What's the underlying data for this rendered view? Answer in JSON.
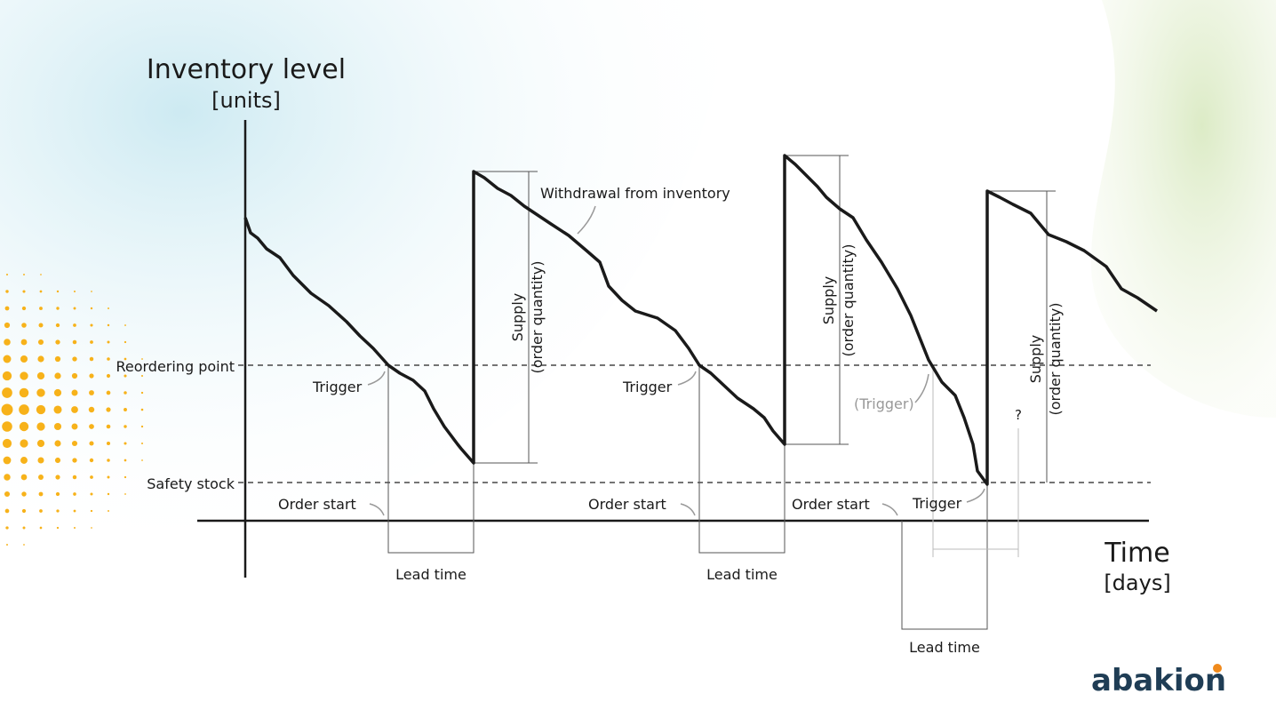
{
  "y_axis": {
    "title": "Inventory level",
    "unit": "[units]"
  },
  "x_axis": {
    "title": "Time",
    "unit": "[days]"
  },
  "levels": {
    "reorder_point": "Reordering point",
    "safety_stock": "Safety stock"
  },
  "annotations": {
    "withdrawal": "Withdrawal from inventory",
    "supply_line1": "Supply",
    "supply_line2": "(order quantity)",
    "trigger": "Trigger",
    "trigger_hypothetical": "(Trigger)",
    "order_start": "Order start",
    "lead_time": "Lead time",
    "question": "?"
  },
  "logo": "abakion",
  "colors": {
    "line": "#1a1a1a",
    "muted": "#999999",
    "logo": "#1f3d55",
    "logo_dot": "#f08a1c",
    "dots": "#f7b21a"
  }
}
